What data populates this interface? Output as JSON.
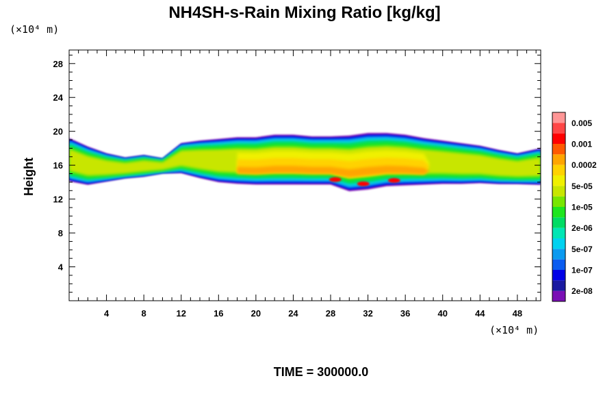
{
  "chart_data": {
    "type": "heatmap",
    "title": "NH4SH-s-Rain Mixing Ratio [kg/kg]",
    "xlabel": "",
    "ylabel": "Height",
    "x_unit": "(×10⁴ m)",
    "y_unit": "(×10⁴ m)",
    "xlim": [
      0,
      50.5
    ],
    "ylim": [
      0,
      29.6
    ],
    "x_ticks": [
      4,
      8,
      12,
      16,
      20,
      24,
      28,
      32,
      36,
      40,
      44,
      48
    ],
    "y_ticks": [
      4,
      8,
      12,
      16,
      20,
      24,
      28
    ],
    "footer": "TIME = 300000.0",
    "colorbar": {
      "labels": [
        "2e-08",
        "1e-07",
        "5e-07",
        "2e-06",
        "1e-05",
        "5e-05",
        "0.0002",
        "0.001",
        "0.005"
      ],
      "colors": [
        "#7a0fb5",
        "#1a1aa0",
        "#0000e6",
        "#0a5cf0",
        "#0a9af0",
        "#00d2f0",
        "#00e6b4",
        "#00dc64",
        "#1ee61e",
        "#78e600",
        "#c8e600",
        "#f0f000",
        "#ffd200",
        "#ffa500",
        "#ff5a00",
        "#ff0000",
        "#ff4646",
        "#ff9696"
      ]
    },
    "band": {
      "x": [
        0,
        2,
        4,
        6,
        8,
        10,
        12,
        14,
        16,
        18,
        20,
        22,
        24,
        26,
        28,
        30,
        32,
        34,
        36,
        38,
        40,
        42,
        44,
        46,
        48,
        50.5
      ],
      "top_height": [
        19.2,
        18.2,
        17.4,
        16.9,
        17.2,
        16.8,
        18.6,
        18.9,
        19.1,
        19.3,
        19.3,
        19.6,
        19.6,
        19.4,
        19.4,
        19.5,
        19.8,
        19.8,
        19.6,
        19.2,
        18.9,
        18.6,
        18.3,
        17.8,
        17.4,
        18.0
      ],
      "bottom_height": [
        14.0,
        13.6,
        14.0,
        14.4,
        14.6,
        15.0,
        15.0,
        14.4,
        13.9,
        13.7,
        13.6,
        13.6,
        13.6,
        13.6,
        13.6,
        12.8,
        13.0,
        13.4,
        13.5,
        13.6,
        13.7,
        13.7,
        13.8,
        13.7,
        13.7,
        13.6
      ]
    }
  }
}
